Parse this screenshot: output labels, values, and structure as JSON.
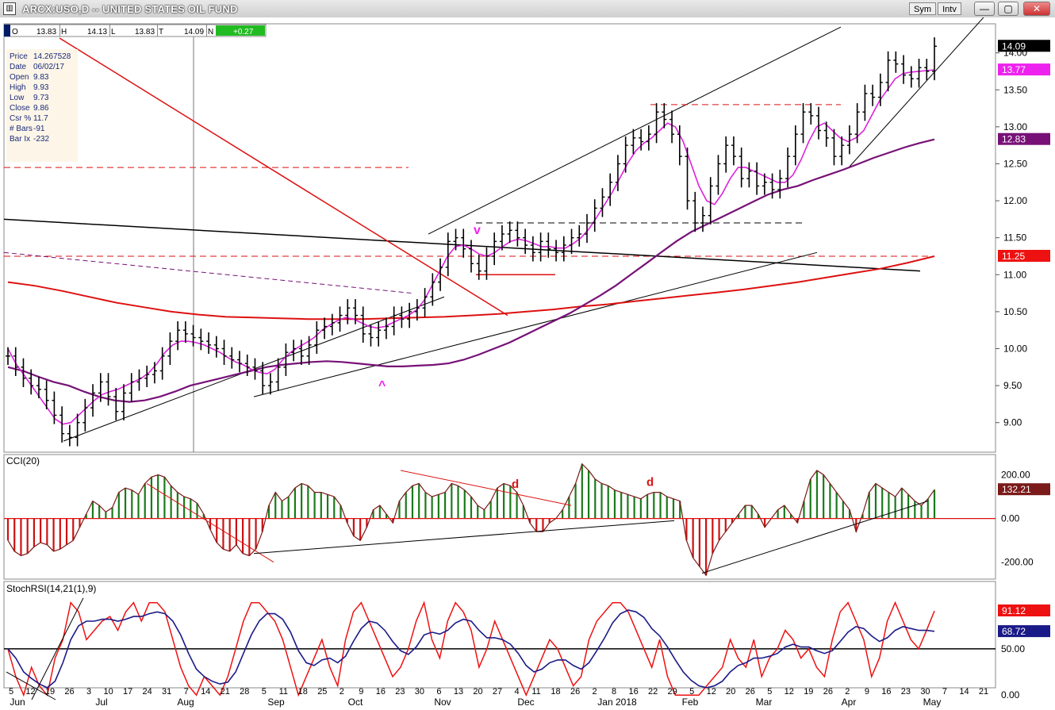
{
  "window": {
    "title": "ARCX:USO,D -- UNITED STATES OIL FUND",
    "sym_button": "Sym",
    "int_button": "Intv",
    "minimize_glyph": "—",
    "restore_glyph": "▢",
    "close_glyph": "✕"
  },
  "ohlc_bar": {
    "open_label": "O",
    "open": "13.83",
    "high_label": "H",
    "high": "14.13",
    "low_label": "L",
    "low": "13.83",
    "close_label": "T",
    "close": "14.09",
    "change_label": "N",
    "change": "+0.27"
  },
  "info_box": [
    {
      "label": "Price",
      "value": "14.267528"
    },
    {
      "label": "Date",
      "value": "06/02/17"
    },
    {
      "label": "Open",
      "value": "9.83"
    },
    {
      "label": "High",
      "value": "9.93"
    },
    {
      "label": "Low",
      "value": "9.73"
    },
    {
      "label": "Close",
      "value": "9.86"
    },
    {
      "label": "Csr %",
      "value": "11.7"
    },
    {
      "label": "# Bars",
      "value": "-91"
    },
    {
      "label": "Bar Ix",
      "value": "-232"
    }
  ],
  "colors": {
    "price_bars": "#000000",
    "ma_short": "#dd22dd",
    "ma_mid": "#771177",
    "ma_long": "#dd1111",
    "cci_pos": "#1a7a1a",
    "cci_neg": "#cc1111",
    "cci_line": "#7a1a1a",
    "rsi_fast": "#ee1111",
    "rsi_slow": "#1a1a88",
    "badge_price": "#000000",
    "badge_ma_short": "#ee22ee",
    "badge_ma_mid": "#771177",
    "badge_ma_long": "#ee1111"
  },
  "chart_data": [
    {
      "type": "line",
      "title": "",
      "ylim": [
        8.6,
        14.2
      ],
      "y_ticks": [
        "14.00",
        "13.50",
        "13.00",
        "12.50",
        "12.00",
        "11.50",
        "11.00",
        "10.50",
        "10.00",
        "9.50",
        "9.00"
      ],
      "last_values": [
        {
          "value": "14.09"
        },
        {
          "value": "13.77"
        },
        {
          "value": "12.83"
        },
        {
          "value": "11.25"
        }
      ],
      "annotations": [
        {
          "text": "v"
        },
        {
          "text": "^"
        }
      ],
      "close_series": [
        9.9,
        9.75,
        9.6,
        9.5,
        9.45,
        9.3,
        9.1,
        8.85,
        8.8,
        9.0,
        9.2,
        9.4,
        9.55,
        9.35,
        9.15,
        9.4,
        9.55,
        9.6,
        9.65,
        9.7,
        9.9,
        10.1,
        10.25,
        10.2,
        10.15,
        10.1,
        10.05,
        10.0,
        9.9,
        9.85,
        9.8,
        9.75,
        9.7,
        9.5,
        9.55,
        9.75,
        9.95,
        10.0,
        9.9,
        10.05,
        10.25,
        10.3,
        10.35,
        10.45,
        10.55,
        10.45,
        10.2,
        10.15,
        10.25,
        10.3,
        10.45,
        10.4,
        10.5,
        10.55,
        10.7,
        10.9,
        11.1,
        11.45,
        11.5,
        11.35,
        11.15,
        11.05,
        11.25,
        11.45,
        11.55,
        11.6,
        11.5,
        11.4,
        11.3,
        11.45,
        11.35,
        11.3,
        11.4,
        11.5,
        11.55,
        11.7,
        11.9,
        12.05,
        12.25,
        12.5,
        12.75,
        12.85,
        12.8,
        12.9,
        13.2,
        13.1,
        12.9,
        12.6,
        12.0,
        11.7,
        11.8,
        12.2,
        12.5,
        12.75,
        12.6,
        12.3,
        12.4,
        12.2,
        12.25,
        12.15,
        12.3,
        12.6,
        12.9,
        13.2,
        13.15,
        12.95,
        12.85,
        12.6,
        12.75,
        12.9,
        13.2,
        13.45,
        13.4,
        13.6,
        13.9,
        13.85,
        13.7,
        13.65,
        13.8,
        13.75,
        14.09
      ],
      "ma_short_series": [
        10.0,
        9.8,
        9.65,
        9.5,
        9.35,
        9.2,
        9.05,
        8.98,
        9.0,
        9.1,
        9.2,
        9.3,
        9.38,
        9.42,
        9.45,
        9.5,
        9.55,
        9.6,
        9.68,
        9.8,
        9.95,
        10.05,
        10.1,
        10.1,
        10.08,
        10.05,
        10.0,
        9.95,
        9.88,
        9.82,
        9.78,
        9.72,
        9.68,
        9.66,
        9.72,
        9.85,
        9.95,
        10.02,
        10.08,
        10.15,
        10.25,
        10.32,
        10.38,
        10.42,
        10.4,
        10.35,
        10.3,
        10.28,
        10.3,
        10.35,
        10.4,
        10.45,
        10.52,
        10.65,
        10.85,
        11.05,
        11.25,
        11.38,
        11.4,
        11.35,
        11.28,
        11.25,
        11.3,
        11.38,
        11.45,
        11.48,
        11.46,
        11.42,
        11.38,
        11.38,
        11.36,
        11.36,
        11.42,
        11.5,
        11.62,
        11.78,
        11.95,
        12.12,
        12.32,
        12.52,
        12.68,
        12.78,
        12.85,
        12.95,
        13.05,
        13.0,
        12.8,
        12.5,
        12.2,
        12.0,
        11.95,
        12.1,
        12.3,
        12.45,
        12.45,
        12.4,
        12.35,
        12.3,
        12.25,
        12.25,
        12.35,
        12.55,
        12.8,
        13.0,
        13.05,
        12.95,
        12.85,
        12.8,
        12.85,
        12.95,
        13.15,
        13.35,
        13.5,
        13.65,
        13.72,
        13.74,
        13.75,
        13.76,
        13.77
      ],
      "ma_mid_series": [
        9.75,
        9.7,
        9.62,
        9.55,
        9.5,
        9.42,
        9.35,
        9.3,
        9.28,
        9.3,
        9.35,
        9.42,
        9.5,
        9.55,
        9.6,
        9.65,
        9.7,
        9.75,
        9.78,
        9.8,
        9.82,
        9.83,
        9.82,
        9.8,
        9.78,
        9.76,
        9.76,
        9.77,
        9.78,
        9.8,
        9.85,
        9.92,
        10.0,
        10.08,
        10.18,
        10.28,
        10.38,
        10.48,
        10.6,
        10.72,
        10.85,
        11.0,
        11.15,
        11.3,
        11.45,
        11.58,
        11.68,
        11.78,
        11.88,
        11.98,
        12.08,
        12.15,
        12.2,
        12.28,
        12.35,
        12.42,
        12.5,
        12.58,
        12.65,
        12.72,
        12.78,
        12.83
      ],
      "ma_long_series": [
        10.9,
        10.85,
        10.78,
        10.7,
        10.62,
        10.56,
        10.5,
        10.46,
        10.43,
        10.42,
        10.41,
        10.4,
        10.4,
        10.4,
        10.41,
        10.42,
        10.43,
        10.45,
        10.47,
        10.5,
        10.53,
        10.57,
        10.6,
        10.64,
        10.68,
        10.72,
        10.76,
        10.8,
        10.85,
        10.9,
        10.96,
        11.02,
        11.08,
        11.16,
        11.25
      ]
    },
    {
      "type": "bar",
      "title": "CCI(20)",
      "ylim": [
        -270,
        260
      ],
      "y_ticks": [
        "200.00",
        "0.00",
        "-200.00"
      ],
      "last_value": "132.21",
      "annotations": [
        {
          "text": "d"
        },
        {
          "text": "d"
        }
      ],
      "values": [
        -100,
        -150,
        -170,
        -160,
        -130,
        -110,
        -120,
        -150,
        -140,
        -120,
        -100,
        -40,
        20,
        80,
        60,
        30,
        50,
        120,
        140,
        130,
        110,
        160,
        190,
        200,
        190,
        150,
        120,
        100,
        90,
        70,
        20,
        -50,
        -110,
        -140,
        -150,
        -120,
        -160,
        -170,
        -140,
        -60,
        60,
        120,
        80,
        100,
        140,
        160,
        150,
        120,
        120,
        110,
        100,
        60,
        -20,
        -80,
        -100,
        -40,
        40,
        60,
        20,
        -20,
        80,
        120,
        150,
        160,
        120,
        100,
        110,
        120,
        160,
        150,
        130,
        100,
        60,
        40,
        80,
        140,
        160,
        150,
        120,
        60,
        -20,
        -60,
        -60,
        -20,
        0,
        40,
        100,
        160,
        250,
        220,
        180,
        160,
        150,
        130,
        120,
        110,
        100,
        90,
        110,
        120,
        120,
        100,
        90,
        80,
        -100,
        -180,
        -220,
        -260,
        -160,
        -100,
        -60,
        -20,
        20,
        60,
        60,
        20,
        -40,
        0,
        40,
        60,
        20,
        -20,
        80,
        180,
        220,
        200,
        160,
        120,
        80,
        40,
        -60,
        20,
        120,
        160,
        140,
        120,
        100,
        140,
        110,
        80,
        60,
        90,
        132
      ],
      "cci_x_labels": []
    },
    {
      "type": "line",
      "title": "StochRSI(14,21(1),9)",
      "ylim": [
        -5,
        110
      ],
      "y_ticks": [
        "50.00",
        "0.00"
      ],
      "last_values": [
        {
          "value": "91.12"
        },
        {
          "value": "68.72"
        }
      ],
      "fast_series": [
        50,
        20,
        0,
        30,
        10,
        0,
        40,
        60,
        100,
        90,
        60,
        70,
        80,
        85,
        70,
        90,
        100,
        80,
        100,
        100,
        90,
        60,
        30,
        10,
        0,
        20,
        10,
        0,
        20,
        50,
        80,
        100,
        100,
        90,
        80,
        60,
        30,
        0,
        20,
        40,
        60,
        30,
        10,
        60,
        90,
        100,
        80,
        60,
        40,
        20,
        30,
        50,
        80,
        100,
        60,
        40,
        80,
        100,
        90,
        70,
        30,
        50,
        80,
        60,
        40,
        20,
        0,
        20,
        40,
        60,
        50,
        30,
        10,
        20,
        60,
        80,
        90,
        100,
        100,
        90,
        70,
        50,
        30,
        60,
        20,
        0,
        0,
        0,
        0,
        10,
        20,
        30,
        60,
        40,
        30,
        60,
        20,
        40,
        50,
        70,
        60,
        40,
        50,
        30,
        20,
        60,
        90,
        100,
        80,
        60,
        20,
        40,
        80,
        100,
        80,
        60,
        50,
        70,
        91
      ],
      "slow_series": [
        50,
        40,
        25,
        18,
        12,
        8,
        15,
        35,
        60,
        75,
        80,
        80,
        82,
        82,
        80,
        82,
        85,
        85,
        88,
        90,
        88,
        80,
        65,
        45,
        28,
        20,
        15,
        12,
        14,
        25,
        45,
        65,
        80,
        88,
        88,
        82,
        68,
        48,
        35,
        32,
        38,
        40,
        35,
        42,
        58,
        72,
        80,
        78,
        70,
        58,
        48,
        44,
        52,
        65,
        68,
        66,
        70,
        78,
        82,
        80,
        70,
        62,
        62,
        60,
        55,
        45,
        32,
        25,
        28,
        35,
        38,
        38,
        32,
        28,
        35,
        48,
        62,
        78,
        88,
        92,
        90,
        84,
        72,
        64,
        52,
        38,
        25,
        16,
        10,
        8,
        10,
        15,
        25,
        32,
        35,
        40,
        40,
        42,
        45,
        52,
        55,
        52,
        52,
        48,
        45,
        48,
        58,
        68,
        74,
        72,
        64,
        58,
        62,
        70,
        74,
        72,
        70,
        70,
        69
      ]
    }
  ],
  "x_axis": {
    "day_labels": [
      "5",
      "12",
      "19",
      "26",
      "3",
      "10",
      "17",
      "24",
      "31",
      "7",
      "14",
      "21",
      "28",
      "5",
      "11",
      "18",
      "25",
      "2",
      "9",
      "16",
      "23",
      "30",
      "6",
      "13",
      "20",
      "27",
      "4",
      "11",
      "18",
      "26",
      "2",
      "8",
      "16",
      "22",
      "29",
      "5",
      "12",
      "20",
      "26",
      "5",
      "12",
      "19",
      "26",
      "2",
      "9",
      "16",
      "23",
      "30",
      "7",
      "14",
      "21"
    ],
    "month_labels": [
      "Jun",
      "Jul",
      "Aug",
      "Sep",
      "Oct",
      "Nov",
      "Dec",
      "Jan 2018",
      "Feb",
      "Mar",
      "Apr",
      "May"
    ]
  }
}
